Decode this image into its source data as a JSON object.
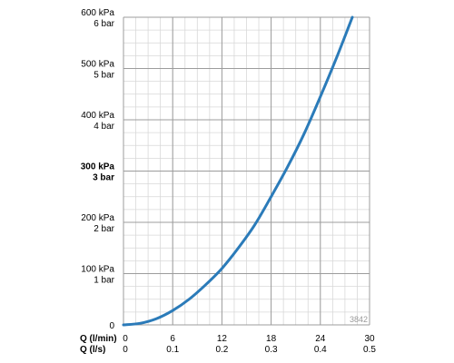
{
  "chart_data": {
    "type": "line",
    "x_axes": [
      {
        "label": "Q (l/min)",
        "ticks": [
          "0",
          "6",
          "12",
          "18",
          "24",
          "30"
        ],
        "range": [
          0,
          30
        ]
      },
      {
        "label": "Q (l/s)",
        "ticks": [
          "0",
          "0.1",
          "0.2",
          "0.3",
          "0.4",
          "0.5"
        ],
        "range": [
          0,
          0.5
        ]
      }
    ],
    "y_axis": {
      "range": [
        0,
        600
      ],
      "unit": "kPa",
      "ticks": [
        {
          "value": 0,
          "primary": "0",
          "secondary": "",
          "bold": false
        },
        {
          "value": 100,
          "primary": "100 kPa",
          "secondary": "1 bar",
          "bold": false
        },
        {
          "value": 200,
          "primary": "200 kPa",
          "secondary": "2 bar",
          "bold": false
        },
        {
          "value": 300,
          "primary": "300 kPa",
          "secondary": "3 bar",
          "bold": true
        },
        {
          "value": 400,
          "primary": "400 kPa",
          "secondary": "4 bar",
          "bold": false
        },
        {
          "value": 500,
          "primary": "500 kPa",
          "secondary": "5 bar",
          "bold": false
        },
        {
          "value": 600,
          "primary": "600 kPa",
          "secondary": "6 bar",
          "bold": false
        }
      ]
    },
    "grid": {
      "major_x_step": 6,
      "minor_x_step": 1.5,
      "major_y_step": 100,
      "minor_y_step": 25
    },
    "series": [
      {
        "color": "#2b7bb9",
        "points": [
          [
            0,
            0
          ],
          [
            2,
            3
          ],
          [
            4,
            12
          ],
          [
            6,
            28
          ],
          [
            8,
            50
          ],
          [
            10,
            78
          ],
          [
            12,
            110
          ],
          [
            14,
            150
          ],
          [
            16,
            195
          ],
          [
            18,
            250
          ],
          [
            20,
            308
          ],
          [
            22,
            372
          ],
          [
            24,
            445
          ],
          [
            26,
            522
          ],
          [
            27.9,
            600
          ]
        ]
      }
    ],
    "watermark": "3842",
    "grid_color_major": "#9c9c9c",
    "grid_color_minor": "#d8d8d8"
  }
}
